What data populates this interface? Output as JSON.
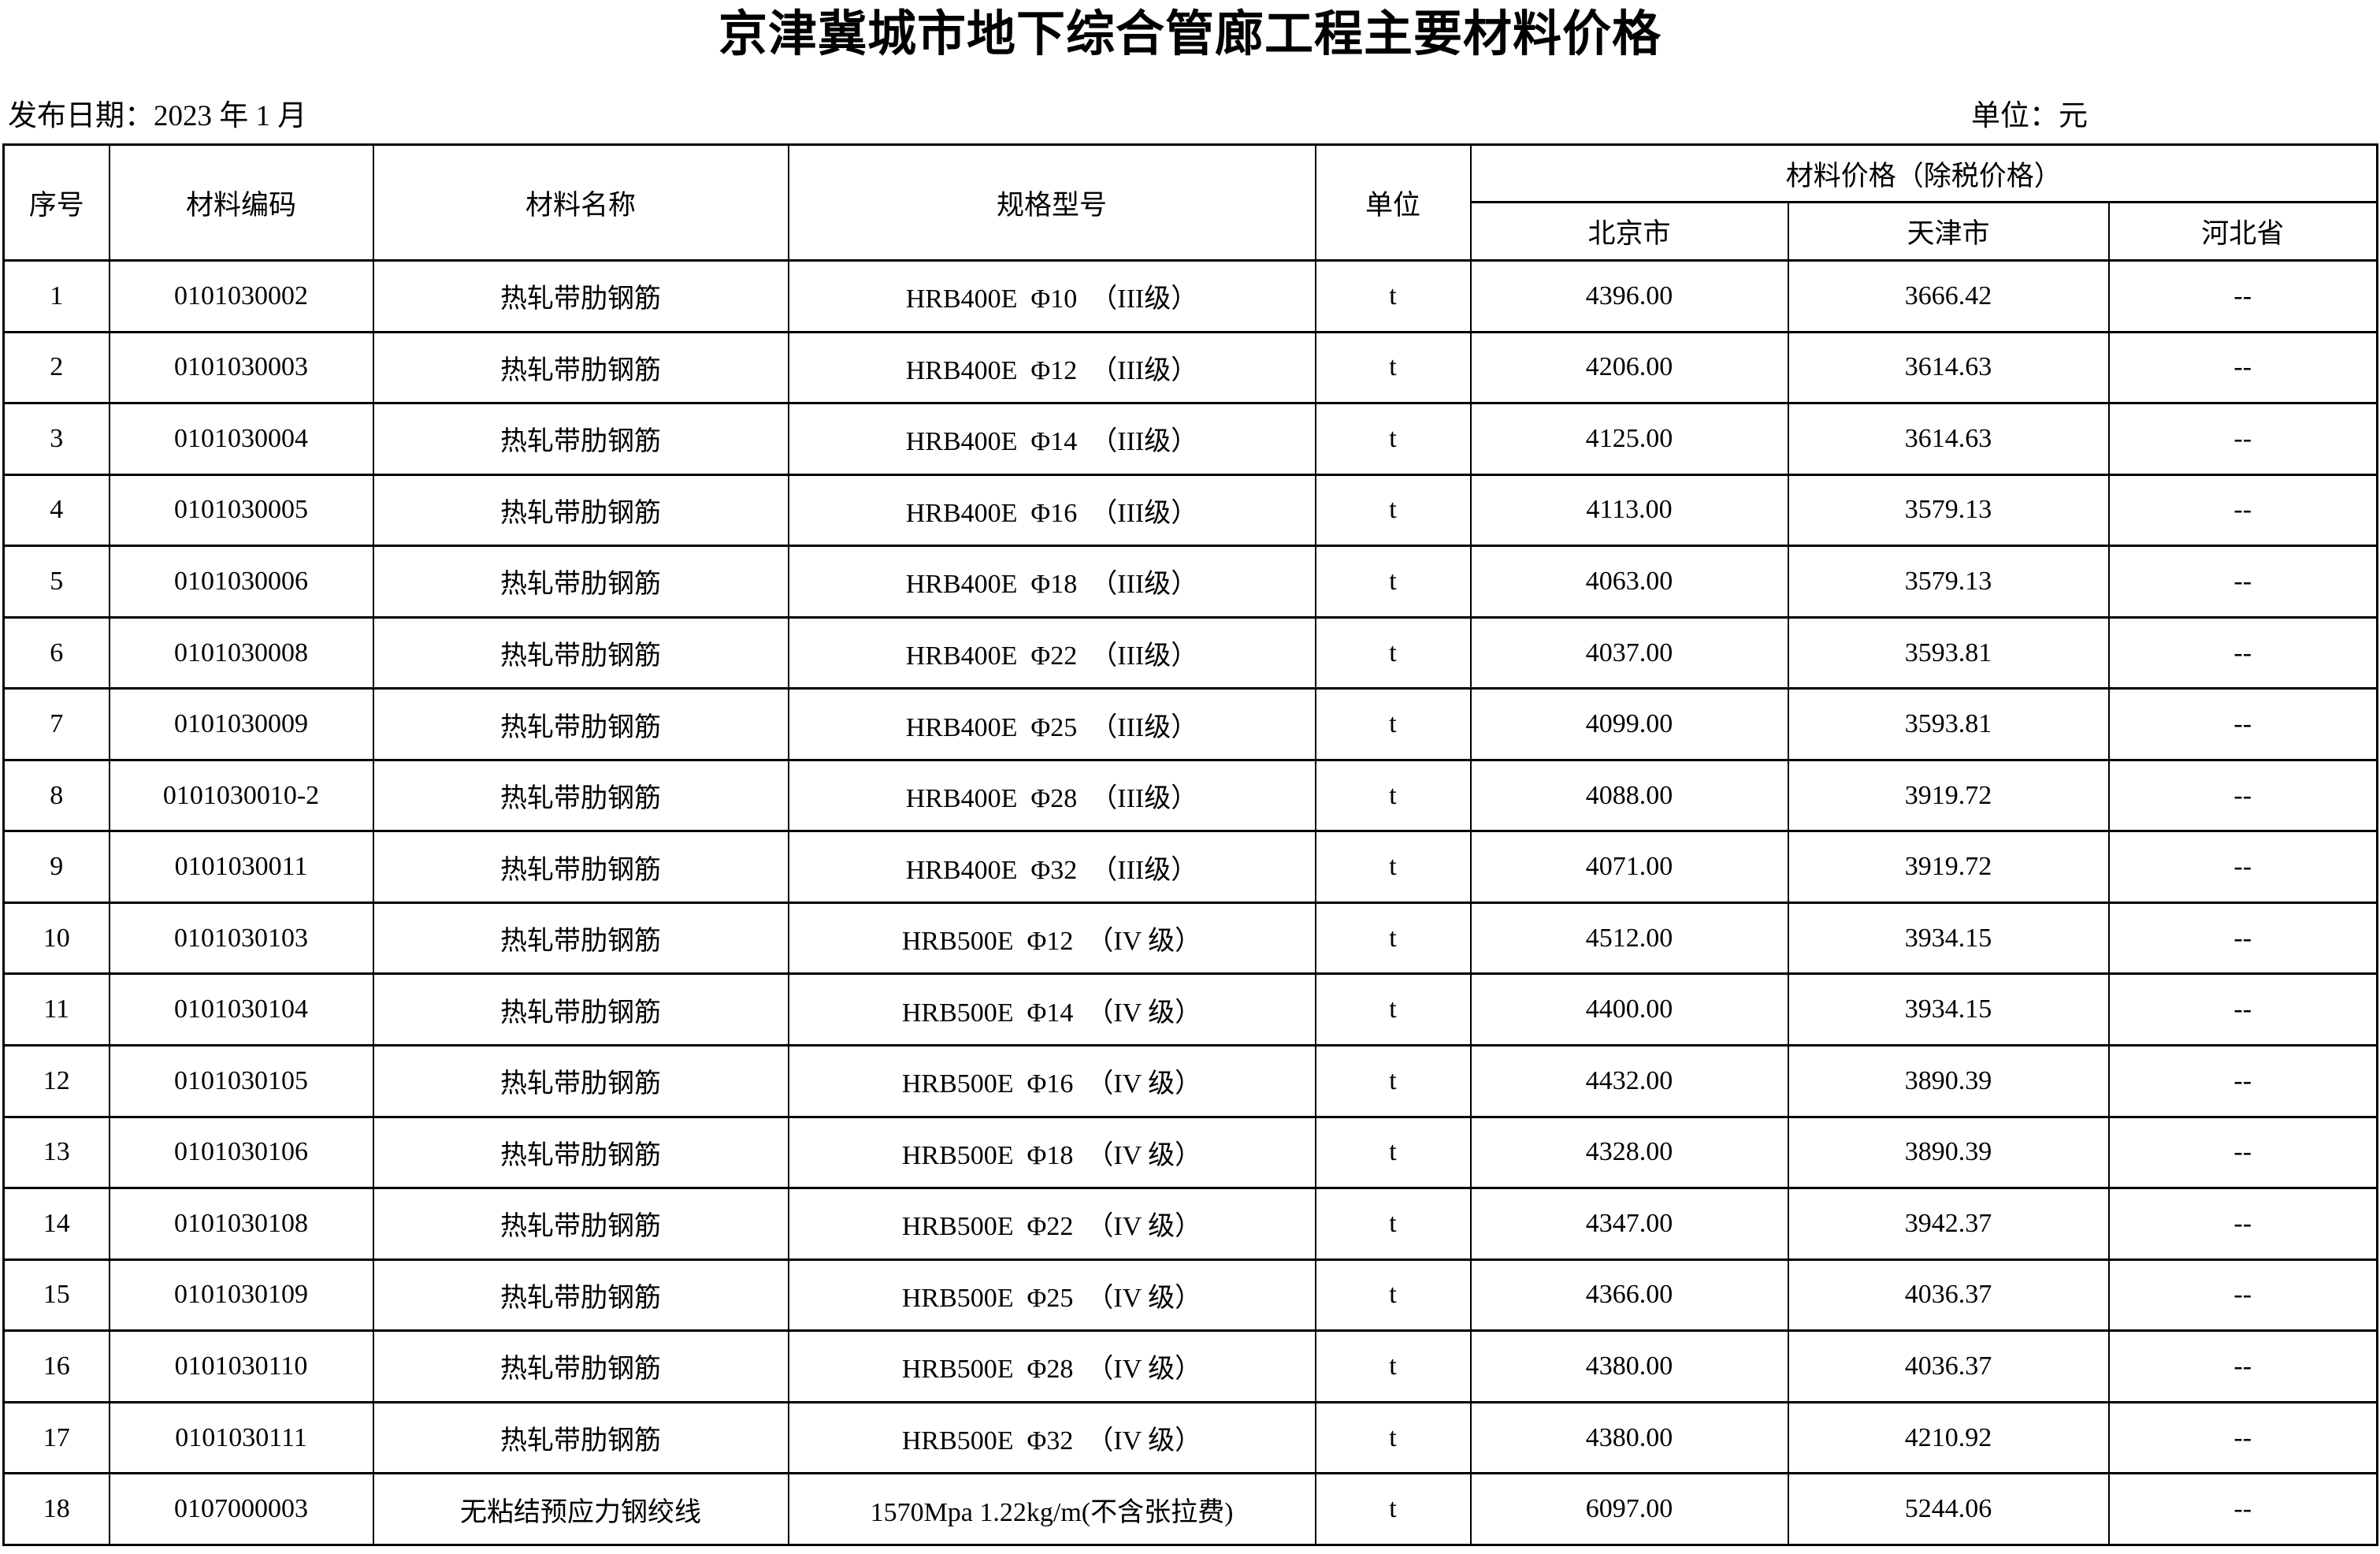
{
  "title": "京津冀城市地下综合管廊工程主要材料价格",
  "meta": {
    "publish_date": "发布日期：2023 年 1 月",
    "unit_note": "单位：元"
  },
  "table": {
    "headers": {
      "no": "序号",
      "code": "材料编码",
      "name": "材料名称",
      "spec": "规格型号",
      "unit": "单位",
      "price_group": "材料价格（除税价格）",
      "regions": [
        "北京市",
        "天津市",
        "河北省"
      ]
    },
    "rows": [
      {
        "no": "1",
        "code": "0101030002",
        "name": "热轧带肋钢筋",
        "spec": "HRB400E  Φ10  （III级）",
        "unit": "t",
        "beijing": "4396.00",
        "tianjin": "3666.42",
        "hebei": "--"
      },
      {
        "no": "2",
        "code": "0101030003",
        "name": "热轧带肋钢筋",
        "spec": "HRB400E  Φ12  （III级）",
        "unit": "t",
        "beijing": "4206.00",
        "tianjin": "3614.63",
        "hebei": "--"
      },
      {
        "no": "3",
        "code": "0101030004",
        "name": "热轧带肋钢筋",
        "spec": "HRB400E  Φ14  （III级）",
        "unit": "t",
        "beijing": "4125.00",
        "tianjin": "3614.63",
        "hebei": "--"
      },
      {
        "no": "4",
        "code": "0101030005",
        "name": "热轧带肋钢筋",
        "spec": "HRB400E  Φ16  （III级）",
        "unit": "t",
        "beijing": "4113.00",
        "tianjin": "3579.13",
        "hebei": "--"
      },
      {
        "no": "5",
        "code": "0101030006",
        "name": "热轧带肋钢筋",
        "spec": "HRB400E  Φ18  （III级）",
        "unit": "t",
        "beijing": "4063.00",
        "tianjin": "3579.13",
        "hebei": "--"
      },
      {
        "no": "6",
        "code": "0101030008",
        "name": "热轧带肋钢筋",
        "spec": "HRB400E  Φ22  （III级）",
        "unit": "t",
        "beijing": "4037.00",
        "tianjin": "3593.81",
        "hebei": "--"
      },
      {
        "no": "7",
        "code": "0101030009",
        "name": "热轧带肋钢筋",
        "spec": "HRB400E  Φ25  （III级）",
        "unit": "t",
        "beijing": "4099.00",
        "tianjin": "3593.81",
        "hebei": "--"
      },
      {
        "no": "8",
        "code": "0101030010-2",
        "name": "热轧带肋钢筋",
        "spec": "HRB400E  Φ28  （III级）",
        "unit": "t",
        "beijing": "4088.00",
        "tianjin": "3919.72",
        "hebei": "--"
      },
      {
        "no": "9",
        "code": "0101030011",
        "name": "热轧带肋钢筋",
        "spec": "HRB400E  Φ32  （III级）",
        "unit": "t",
        "beijing": "4071.00",
        "tianjin": "3919.72",
        "hebei": "--"
      },
      {
        "no": "10",
        "code": "0101030103",
        "name": "热轧带肋钢筋",
        "spec": "HRB500E  Φ12  （IV 级）",
        "unit": "t",
        "beijing": "4512.00",
        "tianjin": "3934.15",
        "hebei": "--"
      },
      {
        "no": "11",
        "code": "0101030104",
        "name": "热轧带肋钢筋",
        "spec": "HRB500E  Φ14  （IV 级）",
        "unit": "t",
        "beijing": "4400.00",
        "tianjin": "3934.15",
        "hebei": "--"
      },
      {
        "no": "12",
        "code": "0101030105",
        "name": "热轧带肋钢筋",
        "spec": "HRB500E  Φ16  （IV 级）",
        "unit": "t",
        "beijing": "4432.00",
        "tianjin": "3890.39",
        "hebei": "--"
      },
      {
        "no": "13",
        "code": "0101030106",
        "name": "热轧带肋钢筋",
        "spec": "HRB500E  Φ18  （IV 级）",
        "unit": "t",
        "beijing": "4328.00",
        "tianjin": "3890.39",
        "hebei": "--"
      },
      {
        "no": "14",
        "code": "0101030108",
        "name": "热轧带肋钢筋",
        "spec": "HRB500E  Φ22  （IV 级）",
        "unit": "t",
        "beijing": "4347.00",
        "tianjin": "3942.37",
        "hebei": "--"
      },
      {
        "no": "15",
        "code": "0101030109",
        "name": "热轧带肋钢筋",
        "spec": "HRB500E  Φ25  （IV 级）",
        "unit": "t",
        "beijing": "4366.00",
        "tianjin": "4036.37",
        "hebei": "--"
      },
      {
        "no": "16",
        "code": "0101030110",
        "name": "热轧带肋钢筋",
        "spec": "HRB500E  Φ28  （IV 级）",
        "unit": "t",
        "beijing": "4380.00",
        "tianjin": "4036.37",
        "hebei": "--"
      },
      {
        "no": "17",
        "code": "0101030111",
        "name": "热轧带肋钢筋",
        "spec": "HRB500E  Φ32  （IV 级）",
        "unit": "t",
        "beijing": "4380.00",
        "tianjin": "4210.92",
        "hebei": "--"
      },
      {
        "no": "18",
        "code": "0107000003",
        "name": "无粘结预应力钢绞线",
        "spec": "1570Mpa 1.22kg/m(不含张拉费)",
        "unit": "t",
        "beijing": "6097.00",
        "tianjin": "5244.06",
        "hebei": "--"
      }
    ]
  }
}
